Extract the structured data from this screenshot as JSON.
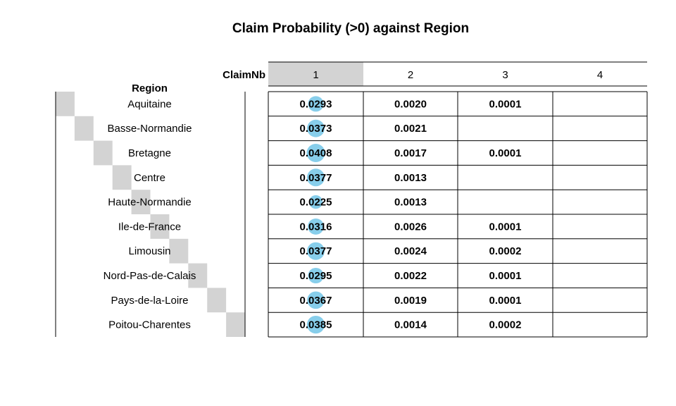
{
  "chart_data": {
    "type": "table",
    "title": "Claim Probability (>0) against Region",
    "row_header": "Region",
    "col_header": "ClaimNb",
    "columns": [
      "1",
      "2",
      "3",
      "4"
    ],
    "highlighted_column": "1",
    "rows": [
      {
        "region": "Aquitaine",
        "display": [
          "0.0293",
          "0.0020",
          "0.0001",
          ""
        ],
        "values": [
          0.0293,
          0.002,
          0.0001,
          null
        ]
      },
      {
        "region": "Basse-Normandie",
        "display": [
          "0.0373",
          "0.0021",
          "",
          ""
        ],
        "values": [
          0.0373,
          0.0021,
          null,
          null
        ]
      },
      {
        "region": "Bretagne",
        "display": [
          "0.0408",
          "0.0017",
          "0.0001",
          ""
        ],
        "values": [
          0.0408,
          0.0017,
          0.0001,
          null
        ]
      },
      {
        "region": "Centre",
        "display": [
          "0.0377",
          "0.0013",
          "",
          ""
        ],
        "values": [
          0.0377,
          0.0013,
          null,
          null
        ]
      },
      {
        "region": "Haute-Normandie",
        "display": [
          "0.0225",
          "0.0013",
          "",
          ""
        ],
        "values": [
          0.0225,
          0.0013,
          null,
          null
        ]
      },
      {
        "region": "Ile-de-France",
        "display": [
          "0.0316",
          "0.0026",
          "0.0001",
          ""
        ],
        "values": [
          0.0316,
          0.0026,
          0.0001,
          null
        ]
      },
      {
        "region": "Limousin",
        "display": [
          "0.0377",
          "0.0024",
          "0.0002",
          ""
        ],
        "values": [
          0.0377,
          0.0024,
          0.0002,
          null
        ]
      },
      {
        "region": "Nord-Pas-de-Calais",
        "display": [
          "0.0295",
          "0.0022",
          "0.0001",
          ""
        ],
        "values": [
          0.0295,
          0.0022,
          0.0001,
          null
        ]
      },
      {
        "region": "Pays-de-la-Loire",
        "display": [
          "0.0367",
          "0.0019",
          "0.0001",
          ""
        ],
        "values": [
          0.0367,
          0.0019,
          0.0001,
          null
        ]
      },
      {
        "region": "Poitou-Charentes",
        "display": [
          "0.0385",
          "0.0014",
          "0.0002",
          ""
        ],
        "values": [
          0.0385,
          0.0014,
          0.0002,
          null
        ]
      }
    ],
    "colors": {
      "bubble": "#87CEEB",
      "highlight": "#D3D3D3",
      "lines": "#000000"
    }
  }
}
